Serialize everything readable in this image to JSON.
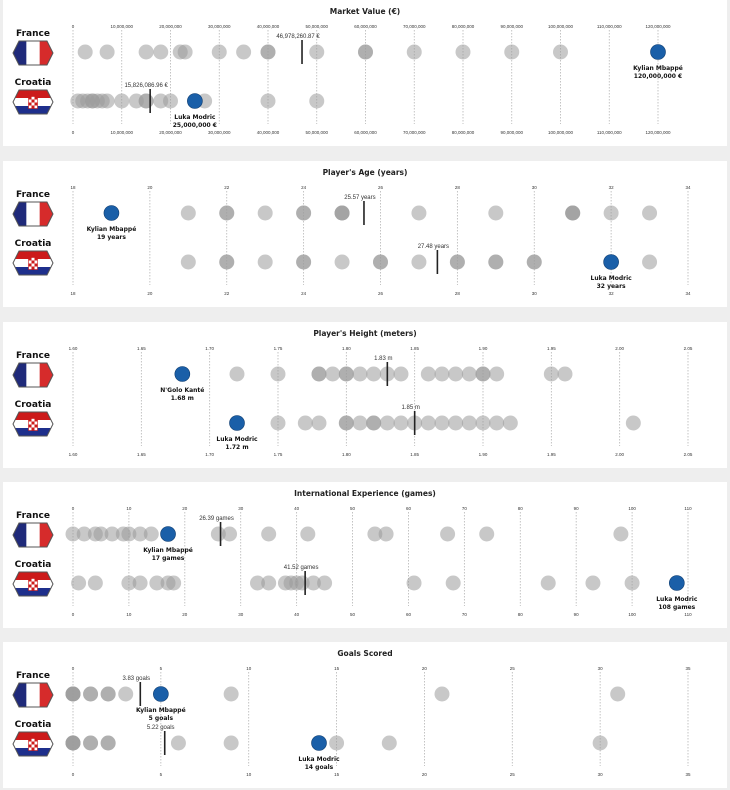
{
  "colors": {
    "highlight": "#1a5fa8",
    "dot": "#9a9a9a",
    "france_blue": "#1f2a7a",
    "france_red": "#d62b2b",
    "croatia_red": "#cc1a1a",
    "croatia_blue": "#1e2f8c"
  },
  "teams": [
    "France",
    "Croatia"
  ],
  "chart_data": [
    {
      "type": "scatter",
      "title": "Market Value (€)",
      "ticks": [
        0,
        10000000,
        20000000,
        30000000,
        40000000,
        50000000,
        60000000,
        70000000,
        80000000,
        90000000,
        100000000,
        110000000,
        120000000
      ],
      "tick_labels": [
        "0",
        "10,000,000",
        "20,000,000",
        "30,000,000",
        "40,000,000",
        "50,000,000",
        "60,000,000",
        "70,000,000",
        "80,000,000",
        "90,000,000",
        "100,000,000",
        "110,000,000",
        "120,000,000"
      ],
      "xlim": [
        0,
        120000000
      ],
      "series": [
        {
          "team": "France",
          "values": [
            2500000,
            7000000,
            15000000,
            18000000,
            22000000,
            23000000,
            30000000,
            35000000,
            40000000,
            40000000,
            50000000,
            60000000,
            60000000,
            70000000,
            80000000,
            90000000,
            100000000,
            120000000
          ],
          "mean": 46978260.87,
          "mean_label": "46,978,260.87 €",
          "highlight": {
            "value": 120000000,
            "label": "Kylian Mbappé",
            "value_label": "120,000,000 €"
          }
        },
        {
          "team": "Croatia",
          "values": [
            1000000,
            2000000,
            3000000,
            4000000,
            4000000,
            5000000,
            6000000,
            7000000,
            10000000,
            13000000,
            15000000,
            15000000,
            18000000,
            20000000,
            25000000,
            27000000,
            40000000,
            50000000
          ],
          "mean": 15826086.96,
          "mean_label": "15,826,086.96 €",
          "highlight": {
            "value": 25000000,
            "label": "Luka Modric",
            "value_label": "25,000,000 €"
          }
        }
      ]
    },
    {
      "type": "scatter",
      "title": "Player's Age (years)",
      "ticks": [
        18,
        20,
        22,
        24,
        26,
        28,
        30,
        32,
        34
      ],
      "tick_labels": [
        "18",
        "20",
        "22",
        "24",
        "26",
        "28",
        "30",
        "32",
        "34"
      ],
      "xlim": [
        18,
        34
      ],
      "series": [
        {
          "team": "France",
          "values": [
            19,
            21,
            22,
            22,
            23,
            24,
            24,
            25,
            25,
            25,
            27,
            29,
            31,
            31,
            31,
            32,
            33
          ],
          "mean": 25.57,
          "mean_label": "25.57 years",
          "highlight": {
            "value": 19,
            "label": "Kylian Mbappé",
            "value_label": "19 years"
          }
        },
        {
          "team": "Croatia",
          "values": [
            21,
            22,
            22,
            23,
            24,
            24,
            25,
            26,
            26,
            27,
            28,
            28,
            29,
            29,
            30,
            30,
            32,
            33
          ],
          "mean": 27.48,
          "mean_label": "27.48 years",
          "highlight": {
            "value": 32,
            "label": "Luka Modric",
            "value_label": "32 years"
          }
        }
      ]
    },
    {
      "type": "scatter",
      "title": "Player's Height (meters)",
      "ticks": [
        1.6,
        1.65,
        1.7,
        1.75,
        1.8,
        1.85,
        1.9,
        1.95,
        2.0,
        2.05
      ],
      "tick_labels": [
        "1.60",
        "1.65",
        "1.70",
        "1.75",
        "1.80",
        "1.85",
        "1.90",
        "1.95",
        "2.00",
        "2.05"
      ],
      "xlim": [
        1.6,
        2.05
      ],
      "series": [
        {
          "team": "France",
          "values": [
            1.68,
            1.72,
            1.75,
            1.78,
            1.78,
            1.79,
            1.8,
            1.8,
            1.81,
            1.82,
            1.83,
            1.84,
            1.86,
            1.87,
            1.88,
            1.89,
            1.9,
            1.9,
            1.91,
            1.95,
            1.96
          ],
          "mean": 1.83,
          "mean_label": "1.83 m",
          "highlight": {
            "value": 1.68,
            "label": "N'Golo Kanté",
            "value_label": "1.68 m"
          }
        },
        {
          "team": "Croatia",
          "values": [
            1.72,
            1.75,
            1.77,
            1.78,
            1.8,
            1.8,
            1.81,
            1.82,
            1.82,
            1.83,
            1.84,
            1.85,
            1.86,
            1.87,
            1.88,
            1.89,
            1.9,
            1.91,
            1.92,
            2.01
          ],
          "mean": 1.85,
          "mean_label": "1.85 m",
          "highlight": {
            "value": 1.72,
            "label": "Luka Modric",
            "value_label": "1.72 m"
          }
        }
      ]
    },
    {
      "type": "scatter",
      "title": "International Experience (games)",
      "ticks": [
        0,
        10,
        20,
        30,
        40,
        50,
        60,
        70,
        80,
        90,
        100,
        110
      ],
      "tick_labels": [
        "0",
        "10",
        "20",
        "30",
        "40",
        "50",
        "60",
        "70",
        "80",
        "90",
        "100",
        "110"
      ],
      "xlim": [
        0,
        110
      ],
      "series": [
        {
          "team": "France",
          "values": [
            0,
            2,
            4,
            5,
            7,
            9,
            10,
            12,
            14,
            17,
            26,
            28,
            35,
            42,
            54,
            56,
            67,
            74,
            98
          ],
          "mean": 26.39,
          "mean_label": "26.39 games",
          "highlight": {
            "value": 17,
            "label": "Kylian Mbappé",
            "value_label": "17 games"
          }
        },
        {
          "team": "Croatia",
          "values": [
            1,
            4,
            10,
            12,
            15,
            17,
            18,
            33,
            35,
            38,
            39,
            40,
            41,
            43,
            45,
            61,
            68,
            85,
            93,
            100,
            108
          ],
          "mean": 41.52,
          "mean_label": "41.52 games",
          "highlight": {
            "value": 108,
            "label": "Luka Modric",
            "value_label": "108 games"
          }
        }
      ]
    },
    {
      "type": "scatter",
      "title": "Goals Scored",
      "ticks": [
        0,
        5,
        10,
        15,
        20,
        25,
        30,
        35
      ],
      "tick_labels": [
        "0",
        "5",
        "10",
        "15",
        "20",
        "25",
        "30",
        "35"
      ],
      "xlim": [
        0,
        35
      ],
      "series": [
        {
          "team": "France",
          "values": [
            0,
            0,
            0,
            0,
            1,
            1,
            2,
            2,
            3,
            5,
            9,
            21,
            31
          ],
          "mean": 3.83,
          "mean_label": "3.83 goals",
          "highlight": {
            "value": 5,
            "label": "Kylian Mbappé",
            "value_label": "5 goals"
          }
        },
        {
          "team": "Croatia",
          "values": [
            0,
            0,
            0,
            0,
            1,
            1,
            2,
            2,
            6,
            9,
            14,
            15,
            18,
            30
          ],
          "mean": 5.22,
          "mean_label": "5.22 goals",
          "highlight": {
            "value": 14,
            "label": "Luka Modric",
            "value_label": "14 goals"
          }
        }
      ]
    }
  ]
}
